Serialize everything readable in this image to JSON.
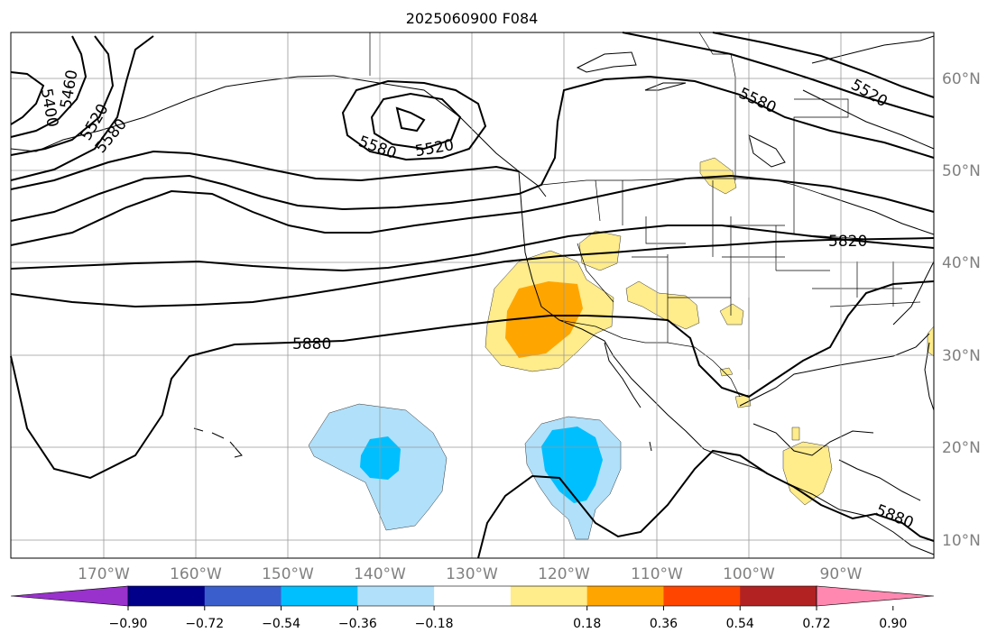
{
  "title": "2025060900 F084",
  "lon_labels": [
    "170°W",
    "160°W",
    "150°W",
    "140°W",
    "130°W",
    "120°W",
    "110°W",
    "100°W",
    "90°W"
  ],
  "lat_labels": [
    "60°N",
    "50°N",
    "40°N",
    "30°N",
    "20°N",
    "10°N"
  ],
  "contour_labels": [
    "5400",
    "5460",
    "5520",
    "5580",
    "5580",
    "5520",
    "5580",
    "5520",
    "5820",
    "5880",
    "5880"
  ],
  "colorbar": {
    "ticks": [
      "−0.90",
      "−0.72",
      "−0.54",
      "−0.36",
      "−0.18",
      "0.18",
      "0.36",
      "0.54",
      "0.72",
      "0.90"
    ],
    "colors": [
      "#9932cc",
      "#00008b",
      "#3a5fcd",
      "#00bfff",
      "#b0e0fa",
      "#ffffff",
      "#ffec8b",
      "#ffa500",
      "#ff4500",
      "#b22222",
      "#ff88b0"
    ]
  }
}
